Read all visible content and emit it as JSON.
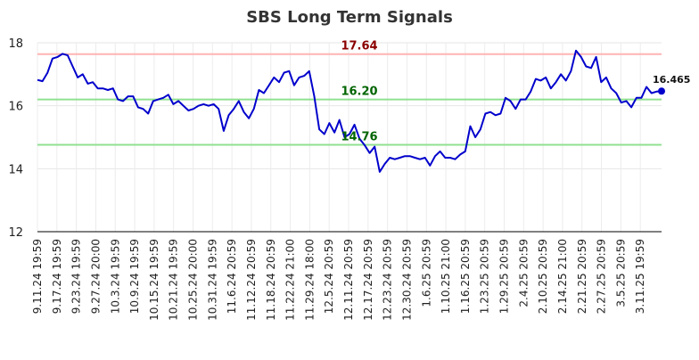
{
  "chart_data": {
    "type": "line",
    "title": "SBS Long Term Signals",
    "xlabel": "",
    "ylabel": "",
    "ylim": [
      12,
      18
    ],
    "yticks": [
      12,
      14,
      16,
      18
    ],
    "grid": true,
    "x_tick_labels": [
      "9.11.24 19:59",
      "9.17.24 19:59",
      "9.23.24 19:59",
      "9.27.24 20:00",
      "10.3.24 19:59",
      "10.9.24 19:59",
      "10.15.24 19:59",
      "10.21.24 19:59",
      "10.25.24 20:00",
      "10.31.24 19:59",
      "11.6.24 20:59",
      "11.12.24 20:59",
      "11.18.24 20:59",
      "11.22.24 21:00",
      "11.29.24 18:00",
      "12.5.24 20:59",
      "12.11.24 20:59",
      "12.17.24 20:59",
      "12.23.24 20:59",
      "12.30.24 20:59",
      "1.6.25 20:59",
      "1.10.25 21:00",
      "1.16.25 20:59",
      "1.23.25 20:59",
      "1.29.25 20:59",
      "2.4.25 20:59",
      "2.10.25 20:59",
      "2.14.25 21:00",
      "2.21.25 20:59",
      "2.27.25 20:59",
      "3.5.25 20:59",
      "3.11.25 19:59"
    ],
    "series": [
      {
        "color": "#0000cc",
        "values": [
          16.82,
          16.78,
          17.05,
          17.5,
          17.55,
          17.65,
          17.6,
          17.25,
          16.9,
          17.0,
          16.7,
          16.75,
          16.55,
          16.55,
          16.5,
          16.55,
          16.2,
          16.15,
          16.3,
          16.3,
          15.95,
          15.9,
          15.75,
          16.15,
          16.2,
          16.25,
          16.35,
          16.05,
          16.15,
          16.0,
          15.85,
          15.9,
          16.0,
          16.05,
          16.0,
          16.05,
          15.9,
          15.2,
          15.7,
          15.9,
          16.15,
          15.8,
          15.6,
          15.9,
          16.5,
          16.4,
          16.65,
          16.9,
          16.75,
          17.05,
          17.1,
          16.65,
          16.9,
          16.95,
          17.1,
          16.3,
          15.25,
          15.1,
          15.45,
          15.15,
          15.55,
          15.0,
          15.1,
          15.4,
          14.95,
          14.75,
          14.5,
          14.7,
          13.9,
          14.15,
          14.35,
          14.3,
          14.35,
          14.4,
          14.4,
          14.35,
          14.3,
          14.35,
          14.1,
          14.4,
          14.55,
          14.35,
          14.35,
          14.3,
          14.45,
          14.55,
          15.35,
          15.0,
          15.25,
          15.75,
          15.8,
          15.7,
          15.75,
          16.25,
          16.15,
          15.9,
          16.2,
          16.2,
          16.45,
          16.85,
          16.8,
          16.9,
          16.55,
          16.75,
          17.0,
          16.8,
          17.1,
          17.75,
          17.55,
          17.25,
          17.2,
          17.55,
          16.75,
          16.9,
          16.55,
          16.4,
          16.1,
          16.15,
          15.95,
          16.25,
          16.25,
          16.6,
          16.4,
          16.45,
          16.465
        ]
      }
    ],
    "reference_lines": [
      {
        "value": 17.64,
        "label": "17.64",
        "line_color": "#ffb3b3",
        "label_color": "#8b0000"
      },
      {
        "value": 16.2,
        "label": "16.20",
        "line_color": "#90e090",
        "label_color": "#006400"
      },
      {
        "value": 14.76,
        "label": "14.76",
        "line_color": "#90e090",
        "label_color": "#006400"
      }
    ],
    "last_value_label": "16.465"
  }
}
